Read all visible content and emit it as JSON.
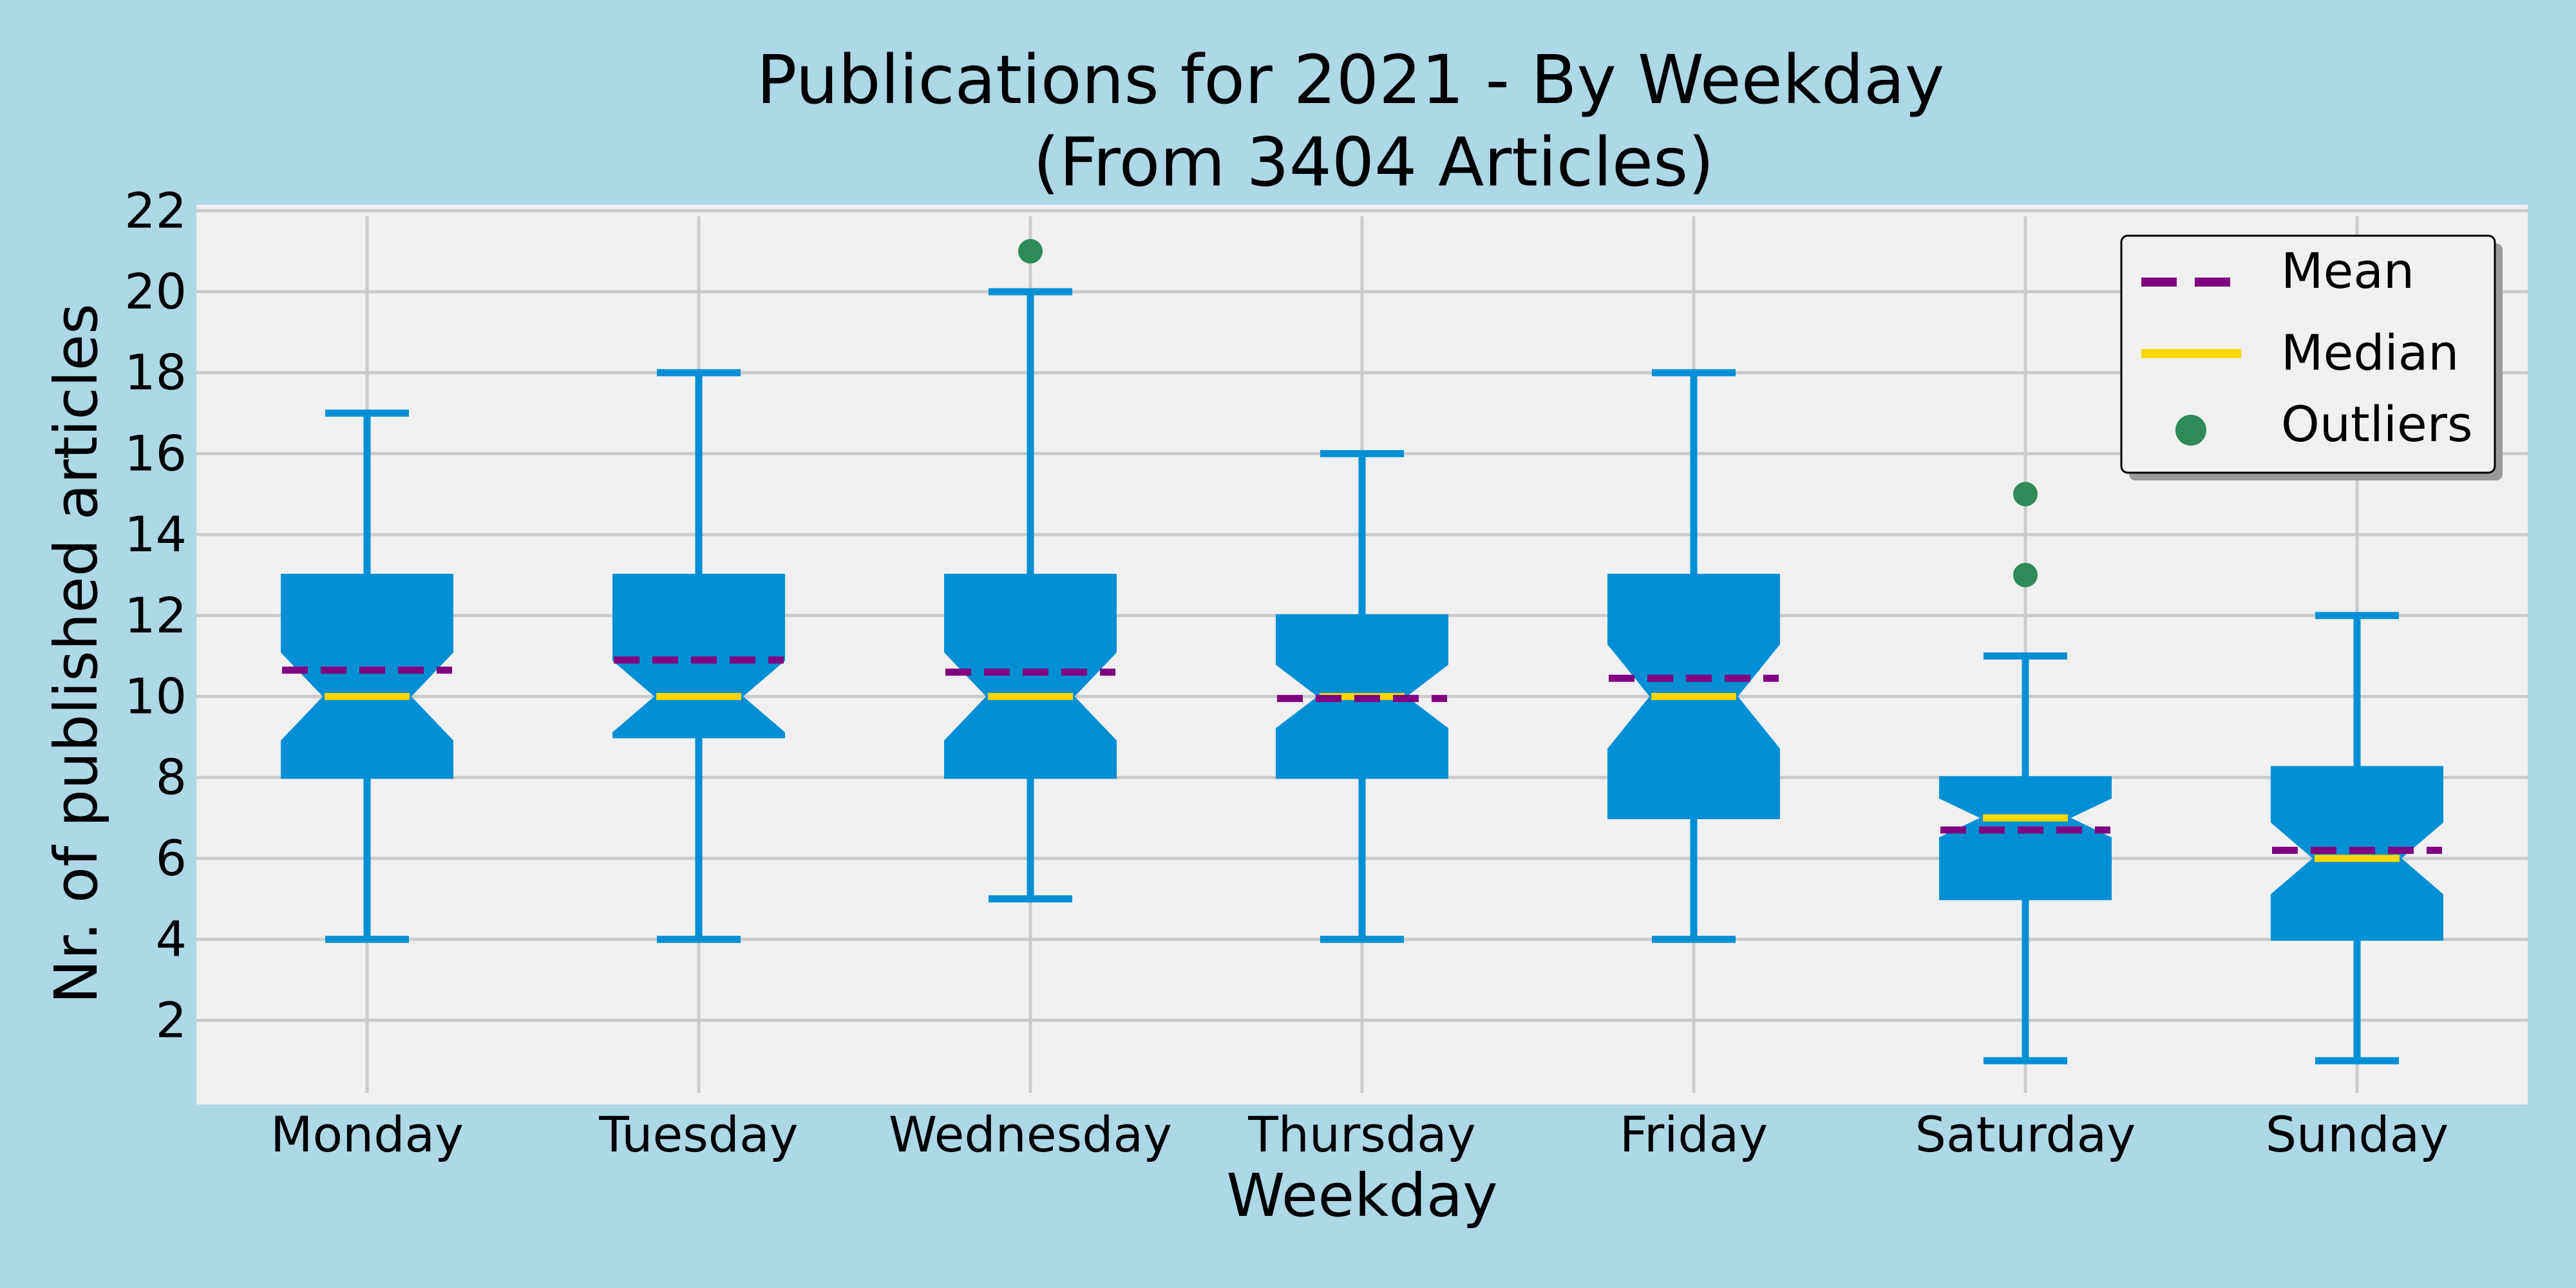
{
  "chart_data": {
    "type": "boxplot",
    "title_line1": "Publications for 2021 - By Weekday",
    "title_line2": "(From 3404 Articles)",
    "xlabel": "Weekday",
    "ylabel": "Nr. of published articles",
    "ylim": [
      0,
      22
    ],
    "yticks": [
      2,
      4,
      6,
      8,
      10,
      12,
      14,
      16,
      18,
      20,
      22
    ],
    "grid": true,
    "categories": [
      "Monday",
      "Tuesday",
      "Wednesday",
      "Thursday",
      "Friday",
      "Saturday",
      "Sunday"
    ],
    "boxes": [
      {
        "label": "Monday",
        "whisker_low": 4,
        "q1": 8,
        "median": 10,
        "q3": 13,
        "whisker_high": 17,
        "mean": 10.65,
        "notch_low": 8.9,
        "notch_high": 11.1,
        "outliers": []
      },
      {
        "label": "Tuesday",
        "whisker_low": 4,
        "q1": 9,
        "median": 10,
        "q3": 13,
        "whisker_high": 18,
        "mean": 10.9,
        "notch_low": 9.1,
        "notch_high": 10.9,
        "outliers": []
      },
      {
        "label": "Wednesday",
        "whisker_low": 5,
        "q1": 8,
        "median": 10,
        "q3": 13,
        "whisker_high": 20,
        "mean": 10.6,
        "notch_low": 8.9,
        "notch_high": 11.1,
        "outliers": [
          21
        ]
      },
      {
        "label": "Thursday",
        "whisker_low": 4,
        "q1": 8,
        "median": 10,
        "q3": 12,
        "whisker_high": 16,
        "mean": 9.95,
        "notch_low": 9.2,
        "notch_high": 10.8,
        "outliers": []
      },
      {
        "label": "Friday",
        "whisker_low": 4,
        "q1": 7,
        "median": 10,
        "q3": 13,
        "whisker_high": 18,
        "mean": 10.45,
        "notch_low": 8.7,
        "notch_high": 11.3,
        "outliers": []
      },
      {
        "label": "Saturday",
        "whisker_low": 1,
        "q1": 5,
        "median": 7,
        "q3": 8,
        "whisker_high": 11,
        "mean": 6.7,
        "notch_low": 6.5,
        "notch_high": 7.5,
        "outliers": [
          13,
          15
        ]
      },
      {
        "label": "Sunday",
        "whisker_low": 1,
        "q1": 4,
        "median": 6,
        "q3": 8.25,
        "whisker_high": 12,
        "mean": 6.2,
        "notch_low": 5.1,
        "notch_high": 6.9,
        "outliers": []
      }
    ],
    "legend": {
      "position": "top-right",
      "items": [
        {
          "label": "Mean",
          "style": "dashed-line",
          "color": "#800080"
        },
        {
          "label": "Median",
          "style": "solid-line",
          "color": "#ffd700"
        },
        {
          "label": "Outliers",
          "style": "dot",
          "color": "#2e8b57"
        }
      ]
    },
    "colors": {
      "background": "#add8e6",
      "plot_background": "#f0f0f0",
      "box": "#008fd5",
      "whisker": "#008fd5",
      "grid": "#cbcbcb",
      "mean": "#800080",
      "median": "#ffd700",
      "outlier": "#2e8b57",
      "text": "#000000"
    }
  }
}
